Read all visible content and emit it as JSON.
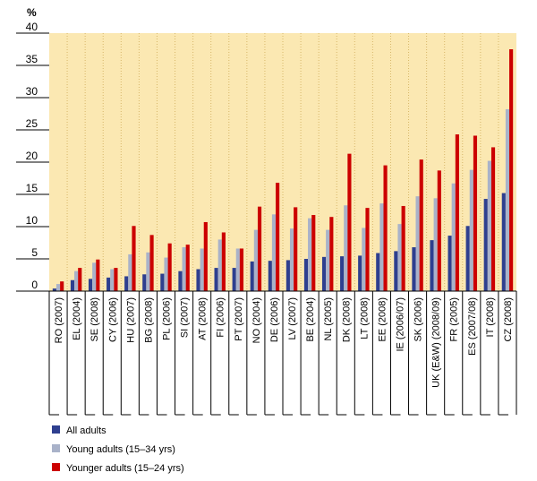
{
  "chart_data": {
    "type": "bar",
    "unit_label": "%",
    "ylim": [
      0,
      40
    ],
    "yticks": [
      0,
      5,
      10,
      15,
      20,
      25,
      30,
      35,
      40
    ],
    "grid": false,
    "legend_position": "bottom-left",
    "categories": [
      "RO (2007)",
      "EL (2004)",
      "SE (2008)",
      "CY (2006)",
      "HU (2007)",
      "BG (2008)",
      "PL (2006)",
      "SI (2007)",
      "AT (2008)",
      "FI (2006)",
      "PT (2007)",
      "NO (2004)",
      "DE (2006)",
      "LV (2007)",
      "BE (2004)",
      "NL (2005)",
      "DK (2008)",
      "LT (2008)",
      "EE (2008)",
      "IE (2006/07)",
      "SK (2006)",
      "UK (E&W) (2008/09)",
      "FR (2005)",
      "ES (2007/08)",
      "IT (2008)",
      "CZ (2008)"
    ],
    "series": [
      {
        "name": "All adults",
        "color": "#2e3f8f",
        "values": [
          0.4,
          1.7,
          1.9,
          2.1,
          2.3,
          2.6,
          2.7,
          3.1,
          3.4,
          3.6,
          3.6,
          4.6,
          4.7,
          4.8,
          5.0,
          5.3,
          5.4,
          5.5,
          5.9,
          6.2,
          6.8,
          7.9,
          8.6,
          10.1,
          14.3,
          15.2
        ]
      },
      {
        "name": "Young adults (15–34 yrs)",
        "color": "#a9b2c9",
        "values": [
          1.1,
          3.1,
          4.4,
          3.4,
          5.7,
          6.0,
          5.2,
          6.8,
          6.6,
          8.0,
          6.6,
          9.5,
          11.9,
          9.7,
          11.3,
          9.5,
          13.3,
          9.8,
          13.6,
          10.4,
          14.7,
          14.4,
          16.7,
          18.8,
          20.2,
          28.2
        ]
      },
      {
        "name": "Younger adults (15–24 yrs)",
        "color": "#cc0000",
        "values": [
          1.5,
          3.6,
          4.9,
          3.6,
          10.1,
          8.7,
          7.4,
          7.2,
          10.7,
          9.1,
          6.6,
          13.1,
          16.8,
          13.0,
          11.8,
          11.5,
          21.3,
          12.9,
          19.5,
          13.2,
          20.4,
          18.7,
          24.3,
          24.1,
          22.3,
          37.5
        ]
      }
    ]
  }
}
